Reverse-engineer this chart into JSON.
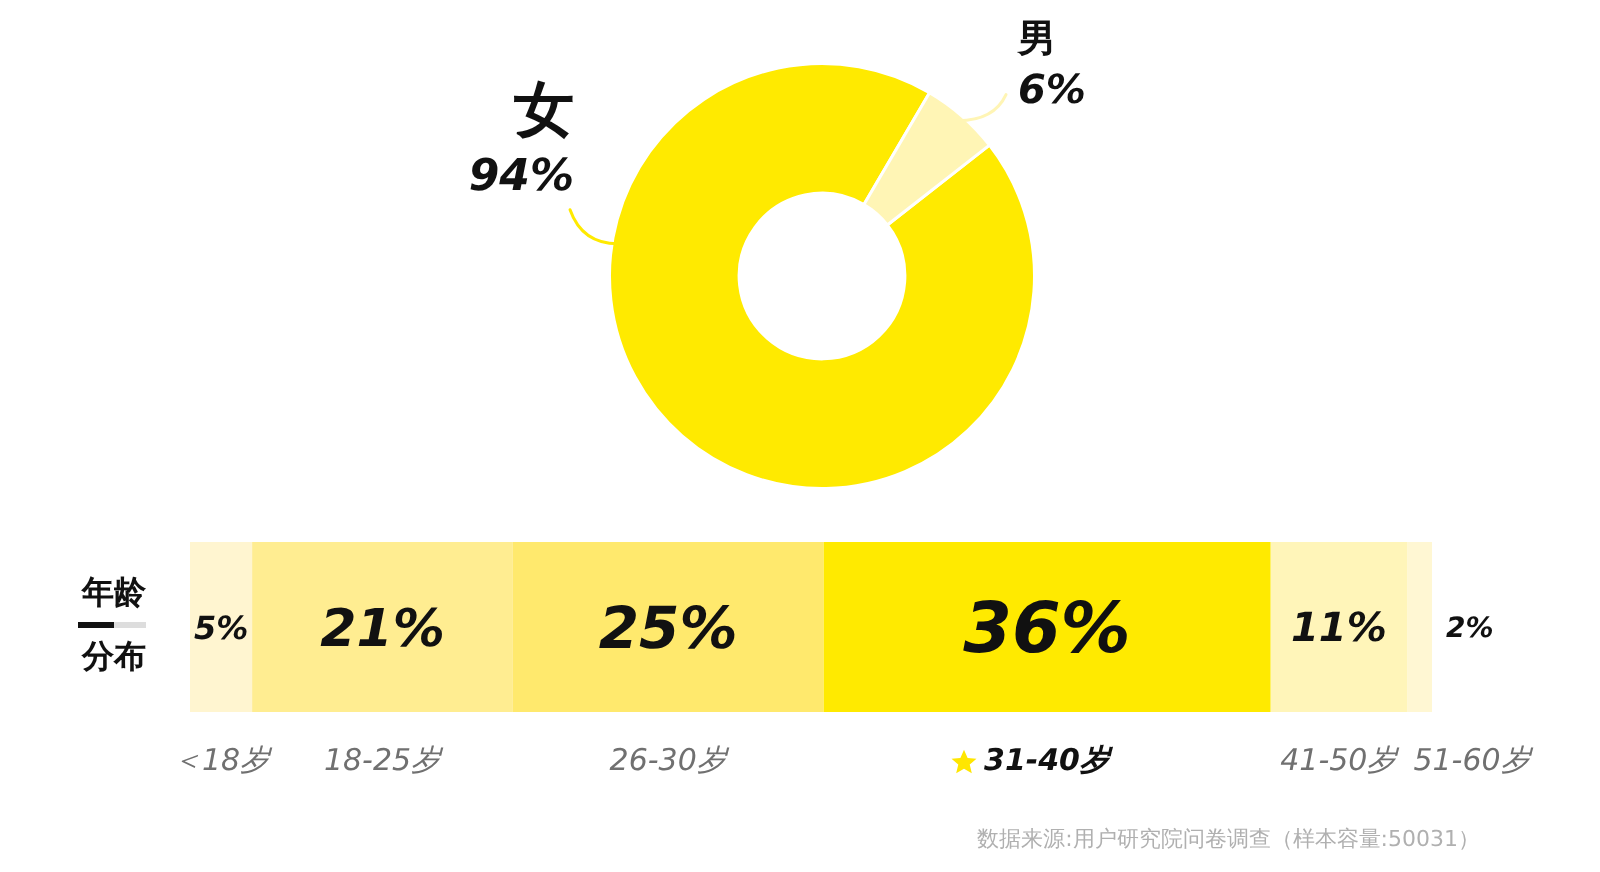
{
  "chart_data": [
    {
      "type": "donut",
      "categories": [
        "女",
        "男"
      ],
      "values": [
        94,
        6
      ],
      "colors": [
        "#ffea00",
        "#fff5b5"
      ],
      "value_labels": [
        "94%",
        "6%"
      ]
    },
    {
      "type": "bar",
      "orientation": "horizontal",
      "stacked": true,
      "categories": [
        "年龄分布"
      ],
      "tick_labels": "y",
      "series": [
        {
          "name": "＜18岁",
          "color": "#fff5d0",
          "values": [
            5
          ],
          "value_labels": [
            "5%"
          ]
        },
        {
          "name": "18-25岁",
          "color": "#ffed91",
          "values": [
            21
          ],
          "value_labels": [
            "21%"
          ]
        },
        {
          "name": "26-30岁",
          "color": "#ffe96d",
          "values": [
            25
          ],
          "value_labels": [
            "25%"
          ]
        },
        {
          "name": "31-40岁",
          "color": "#ffea00",
          "values": [
            36
          ],
          "value_labels": [
            "36%"
          ]
        },
        {
          "name": "41-50岁",
          "color": "#fff5b9",
          "values": [
            11
          ],
          "value_labels": [
            "11%"
          ]
        },
        {
          "name": "51-60岁",
          "color": "#fff7d3",
          "values": [
            2
          ],
          "value_labels": [
            "2%"
          ]
        }
      ],
      "annotations": [
        "数据来源:用户研究院问卷调查（样本容量:50031）"
      ]
    }
  ]
}
